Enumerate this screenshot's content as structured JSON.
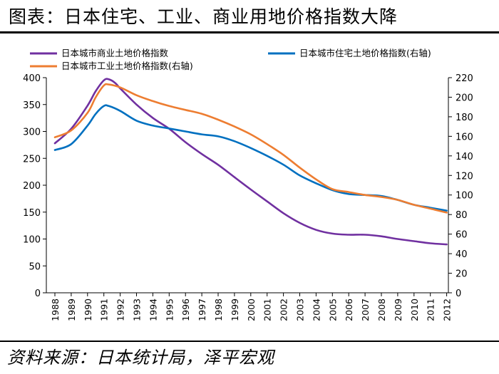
{
  "header": {
    "title": "图表：日本住宅、工业、商业用地价格指数大降"
  },
  "footer": {
    "source": "资料来源：日本统计局，泽平宏观"
  },
  "chart_data": {
    "type": "line",
    "x": [
      "1988",
      "1989",
      "1990",
      "1991",
      "1992",
      "1993",
      "1994",
      "1995",
      "1996",
      "1997",
      "1998",
      "1999",
      "2000",
      "2001",
      "2002",
      "2003",
      "2004",
      "2005",
      "2006",
      "2007",
      "2008",
      "2009",
      "2010",
      "2011",
      "2012"
    ],
    "left_axis": {
      "min": 0,
      "max": 400,
      "ticks": [
        0,
        50,
        100,
        150,
        200,
        250,
        300,
        350,
        400
      ]
    },
    "right_axis": {
      "min": 0,
      "max": 220,
      "ticks": [
        0,
        20,
        40,
        60,
        80,
        100,
        120,
        140,
        160,
        180,
        200,
        220
      ]
    },
    "series": [
      {
        "name": "日本城市商业土地价格指数",
        "axis": "left",
        "color": "#7030a0",
        "x": [
          1988,
          1989,
          1990,
          1990.5,
          1991,
          1991.3,
          1991.7,
          1992,
          1993,
          1994,
          1995,
          1996,
          1997,
          1998,
          1999,
          2000,
          2001,
          2002,
          2003,
          2004,
          2005,
          2006,
          2007,
          2008,
          2009,
          2010,
          2011,
          2012
        ],
        "values": [
          278,
          305,
          348,
          375,
          395,
          397,
          390,
          380,
          350,
          325,
          305,
          280,
          258,
          238,
          215,
          192,
          170,
          148,
          130,
          117,
          110,
          108,
          108,
          105,
          100,
          96,
          92,
          90
        ]
      },
      {
        "name": "日本城市住宅土地价格指数(右轴)",
        "axis": "right",
        "color": "#0070c0",
        "x": [
          1988,
          1989,
          1990,
          1990.5,
          1991,
          1991.3,
          1992,
          1993,
          1994,
          1995,
          1996,
          1997,
          1998,
          1999,
          2000,
          2001,
          2002,
          2003,
          2004,
          2005,
          2006,
          2007,
          2008,
          2009,
          2010,
          2011,
          2012
        ],
        "values": [
          146,
          152,
          171,
          183,
          191,
          191,
          186,
          176,
          171,
          168,
          165,
          162,
          160,
          155,
          148,
          140,
          131,
          120,
          112,
          105,
          101,
          100,
          99,
          95,
          90,
          87,
          84
        ]
      },
      {
        "name": "日本城市工业土地价格指数(右轴)",
        "axis": "right",
        "color": "#ed7d31",
        "x": [
          1988,
          1989,
          1990,
          1990.5,
          1991,
          1991.3,
          1992,
          1993,
          1994,
          1995,
          1996,
          1997,
          1998,
          1999,
          2000,
          2001,
          2002,
          2003,
          2004,
          2005,
          2006,
          2007,
          2008,
          2009,
          2010,
          2011,
          2012
        ],
        "values": [
          159,
          166,
          184,
          200,
          212,
          213,
          210,
          202,
          196,
          191,
          187,
          183,
          177,
          170,
          162,
          152,
          141,
          128,
          116,
          106,
          103,
          100,
          98,
          95,
          90,
          86,
          82
        ]
      }
    ]
  }
}
